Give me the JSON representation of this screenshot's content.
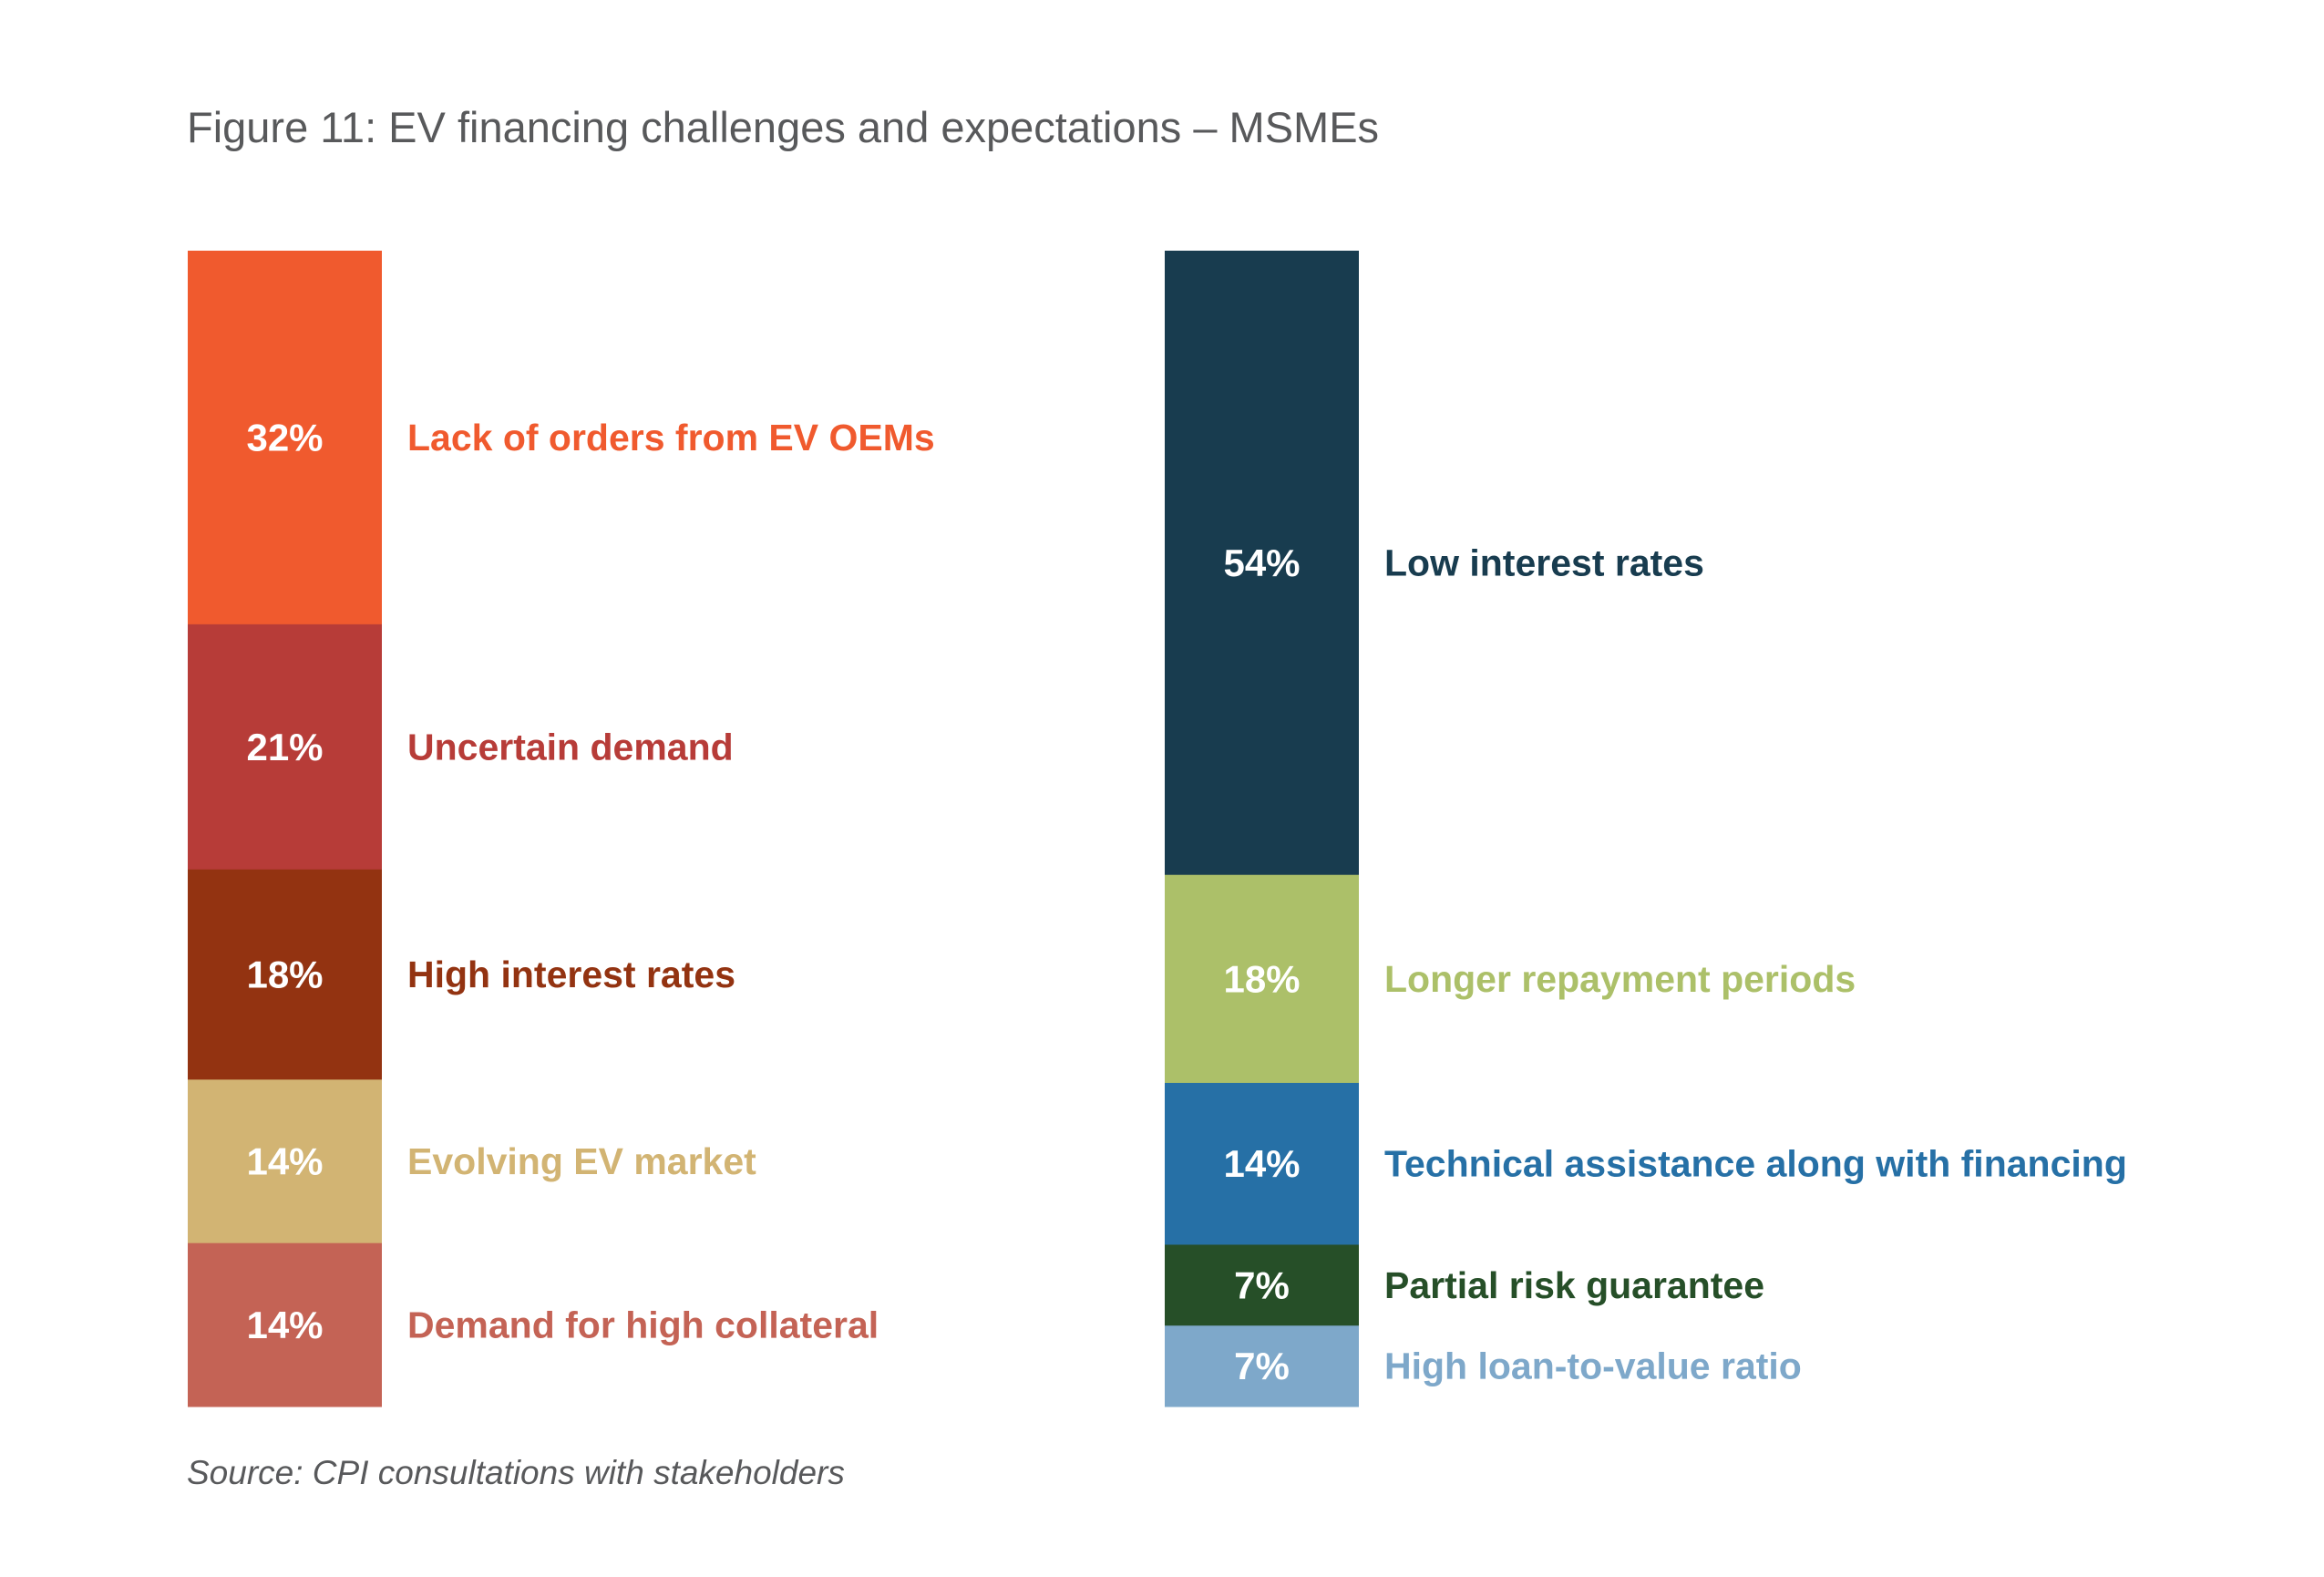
{
  "title": "Figure 11: EV financing challenges and expectations – MSMEs",
  "source": "Source: CPI consultations with stakeholders",
  "chart_data": [
    {
      "type": "bar",
      "stacked": true,
      "title": "",
      "unit": "%",
      "segments": [
        {
          "name": "Lack of orders from EV OEMs",
          "value": 32,
          "label": "32%",
          "color": "#f05a2e"
        },
        {
          "name": "Uncertain demand",
          "value": 21,
          "label": "21%",
          "color": "#b73c38"
        },
        {
          "name": "High interest rates",
          "value": 18,
          "label": "18%",
          "color": "#933311"
        },
        {
          "name": "Evolving EV market",
          "value": 14,
          "label": "14%",
          "color": "#d2b473"
        },
        {
          "name": "Demand for high collateral",
          "value": 14,
          "label": "14%",
          "color": "#c46355"
        }
      ]
    },
    {
      "type": "bar",
      "stacked": true,
      "title": "",
      "unit": "%",
      "segments": [
        {
          "name": "Low interest rates",
          "value": 54,
          "label": "54%",
          "color": "#183c4f"
        },
        {
          "name": "Longer repayment periods",
          "value": 18,
          "label": "18%",
          "color": "#acc069"
        },
        {
          "name": "Technical assistance along with financing",
          "value": 14,
          "label": "14%",
          "color": "#2670a6"
        },
        {
          "name": "Partial risk guarantee",
          "value": 7,
          "label": "7%",
          "color": "#264f28"
        },
        {
          "name": "High loan-to-value ratio",
          "value": 7,
          "label": "7%",
          "color": "#7ea8ca"
        }
      ]
    }
  ]
}
